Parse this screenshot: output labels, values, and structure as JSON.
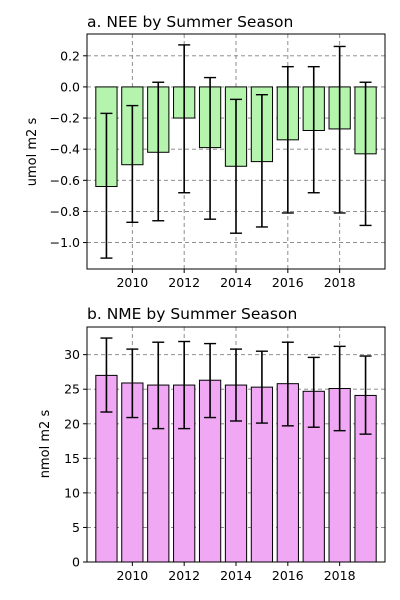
{
  "chart_data": [
    {
      "type": "bar",
      "title": "a. NEE by Summer Season",
      "xlabel": "",
      "ylabel": "umol m2 s",
      "categories": [
        "2009",
        "2010",
        "2011",
        "2012",
        "2013",
        "2014",
        "2015",
        "2016",
        "2017",
        "2018",
        "2019"
      ],
      "values": [
        -0.64,
        -0.5,
        -0.42,
        -0.2,
        -0.39,
        -0.51,
        -0.48,
        -0.34,
        -0.28,
        -0.27,
        -0.43
      ],
      "error_low": [
        -1.1,
        -0.87,
        -0.86,
        -0.68,
        -0.85,
        -0.94,
        -0.9,
        -0.81,
        -0.68,
        -0.81,
        -0.89
      ],
      "error_high": [
        -0.17,
        -0.12,
        0.03,
        0.27,
        0.06,
        -0.08,
        -0.05,
        0.13,
        0.13,
        0.26,
        0.03
      ],
      "x_ticks": [
        "2010",
        "2012",
        "2014",
        "2016",
        "2018"
      ],
      "y_ticks": [
        "0.2",
        "0.0",
        "−0.2",
        "−0.4",
        "−0.6",
        "−0.8",
        "−1.0"
      ],
      "y_tick_values": [
        0.2,
        0.0,
        -0.2,
        -0.4,
        -0.6,
        -0.8,
        -1.0
      ],
      "ylim": [
        -1.17,
        0.34
      ],
      "grid": true,
      "bar_color": "#b4f4ac"
    },
    {
      "type": "bar",
      "title": "b. NME by Summer Season",
      "xlabel": "",
      "ylabel": "nmol m2 s",
      "categories": [
        "2009",
        "2010",
        "2011",
        "2012",
        "2013",
        "2014",
        "2015",
        "2016",
        "2017",
        "2018",
        "2019"
      ],
      "values": [
        27.0,
        25.9,
        25.6,
        25.6,
        26.3,
        25.6,
        25.3,
        25.8,
        24.7,
        25.1,
        24.1
      ],
      "error_low": [
        21.7,
        20.9,
        19.3,
        19.3,
        20.9,
        20.4,
        20.1,
        19.7,
        19.5,
        19.0,
        18.5
      ],
      "error_high": [
        32.4,
        30.8,
        31.8,
        31.9,
        31.6,
        30.8,
        30.5,
        31.8,
        29.6,
        31.2,
        29.8
      ],
      "x_ticks": [
        "2010",
        "2012",
        "2014",
        "2016",
        "2018"
      ],
      "y_ticks": [
        "30",
        "25",
        "20",
        "15",
        "10",
        "5",
        "0"
      ],
      "y_tick_values": [
        30,
        25,
        20,
        15,
        10,
        5,
        0
      ],
      "ylim": [
        0,
        34
      ],
      "grid": true,
      "bar_color": "#f0a8f4"
    }
  ]
}
